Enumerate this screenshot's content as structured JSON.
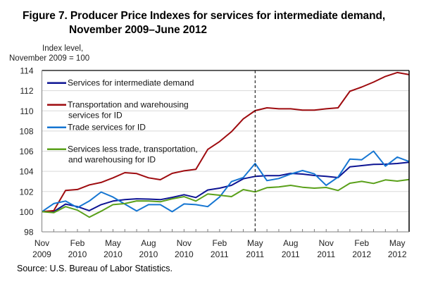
{
  "chart_data": {
    "type": "line",
    "title": "Figure 7. Producer Price Indexes for services for intermediate demand,",
    "title_line2": "November 2009–June 2012",
    "ylabel_line1": "Index level,",
    "ylabel_line2": "November 2009 = 100",
    "xlabel": "",
    "ylim": [
      98,
      114
    ],
    "yticks": [
      "98",
      "100",
      "102",
      "104",
      "106",
      "108",
      "110",
      "112",
      "114"
    ],
    "grid": true,
    "x": [
      "Nov 2009",
      "Dec 2009",
      "Jan 2010",
      "Feb 2010",
      "Mar 2010",
      "Apr 2010",
      "May 2010",
      "Jun 2010",
      "Jul 2010",
      "Aug 2010",
      "Sep 2010",
      "Oct 2010",
      "Nov 2010",
      "Dec 2010",
      "Jan 2011",
      "Feb 2011",
      "Mar 2011",
      "Apr 2011",
      "May 2011",
      "Jun 2011",
      "Jul 2011",
      "Aug 2011",
      "Sep 2011",
      "Oct 2011",
      "Nov 2011",
      "Dec 2011",
      "Jan 2012",
      "Feb 2012",
      "Mar 2012",
      "Apr 2012",
      "May 2012",
      "Jun 2012"
    ],
    "xtick_labels": [
      {
        "index": 0,
        "month": "Nov",
        "year": "2009"
      },
      {
        "index": 3,
        "month": "Feb",
        "year": "2010"
      },
      {
        "index": 6,
        "month": "May",
        "year": "2010"
      },
      {
        "index": 9,
        "month": "Aug",
        "year": "2010"
      },
      {
        "index": 12,
        "month": "Nov",
        "year": "2010"
      },
      {
        "index": 15,
        "month": "Feb",
        "year": "2011"
      },
      {
        "index": 18,
        "month": "May",
        "year": "2011"
      },
      {
        "index": 21,
        "month": "Aug",
        "year": "2011"
      },
      {
        "index": 24,
        "month": "Nov",
        "year": "2011"
      },
      {
        "index": 27,
        "month": "Feb",
        "year": "2012"
      },
      {
        "index": 30,
        "month": "May",
        "year": "2012"
      }
    ],
    "reference_line": {
      "index": 18,
      "label": "May 2011",
      "style": "dashed"
    },
    "legend_position": "top-left",
    "series": [
      {
        "name": "Services for intermediate demand",
        "legend_lines": [
          "Services for intermediate demand"
        ],
        "color": "#0d1493",
        "values": [
          100.0,
          100.0,
          100.75,
          100.5,
          100.1,
          100.7,
          101.05,
          101.2,
          101.28,
          101.25,
          101.19,
          101.42,
          101.68,
          101.4,
          102.15,
          102.33,
          102.61,
          103.26,
          103.5,
          103.57,
          103.57,
          103.8,
          103.73,
          103.59,
          103.5,
          103.38,
          104.45,
          104.57,
          104.69,
          104.71,
          104.78,
          104.9
        ]
      },
      {
        "name": "Transportation and warehousing services for ID",
        "legend_lines": [
          "Transportation and warehousing",
          "services for ID"
        ],
        "color": "#9e0b0f",
        "values": [
          100.0,
          100.1,
          102.1,
          102.2,
          102.65,
          102.9,
          103.35,
          103.87,
          103.78,
          103.36,
          103.17,
          103.8,
          104.05,
          104.2,
          106.17,
          106.95,
          107.93,
          109.2,
          110.02,
          110.3,
          110.2,
          110.2,
          110.07,
          110.07,
          110.2,
          110.3,
          111.94,
          112.36,
          112.85,
          113.41,
          113.8,
          113.59
        ]
      },
      {
        "name": "Trade services for ID",
        "legend_lines": [
          "Trade services for ID"
        ],
        "color": "#1676d2",
        "values": [
          100.0,
          100.8,
          101.05,
          100.4,
          101.05,
          101.95,
          101.45,
          100.75,
          100.07,
          100.7,
          100.7,
          100.0,
          100.77,
          100.7,
          100.5,
          101.45,
          102.98,
          103.38,
          104.78,
          103.08,
          103.29,
          103.73,
          104.08,
          103.75,
          102.61,
          103.43,
          105.22,
          105.15,
          106.0,
          104.52,
          105.41,
          104.97
        ]
      },
      {
        "name": "Services less trade, transportation, and warehousing for ID",
        "legend_lines": [
          "Services less trade, transportation,",
          "and warehousing for ID"
        ],
        "color": "#5aa01a",
        "values": [
          100.0,
          99.9,
          100.5,
          100.15,
          99.45,
          100.05,
          100.7,
          100.8,
          101.07,
          101.05,
          100.98,
          101.28,
          101.49,
          101.05,
          101.75,
          101.63,
          101.49,
          102.19,
          101.96,
          102.38,
          102.45,
          102.61,
          102.42,
          102.33,
          102.4,
          102.1,
          102.82,
          103.0,
          102.8,
          103.15,
          103.03,
          103.19
        ]
      }
    ]
  },
  "footer": {
    "source": "Source: U.S. Bureau of Labor Statistics."
  }
}
